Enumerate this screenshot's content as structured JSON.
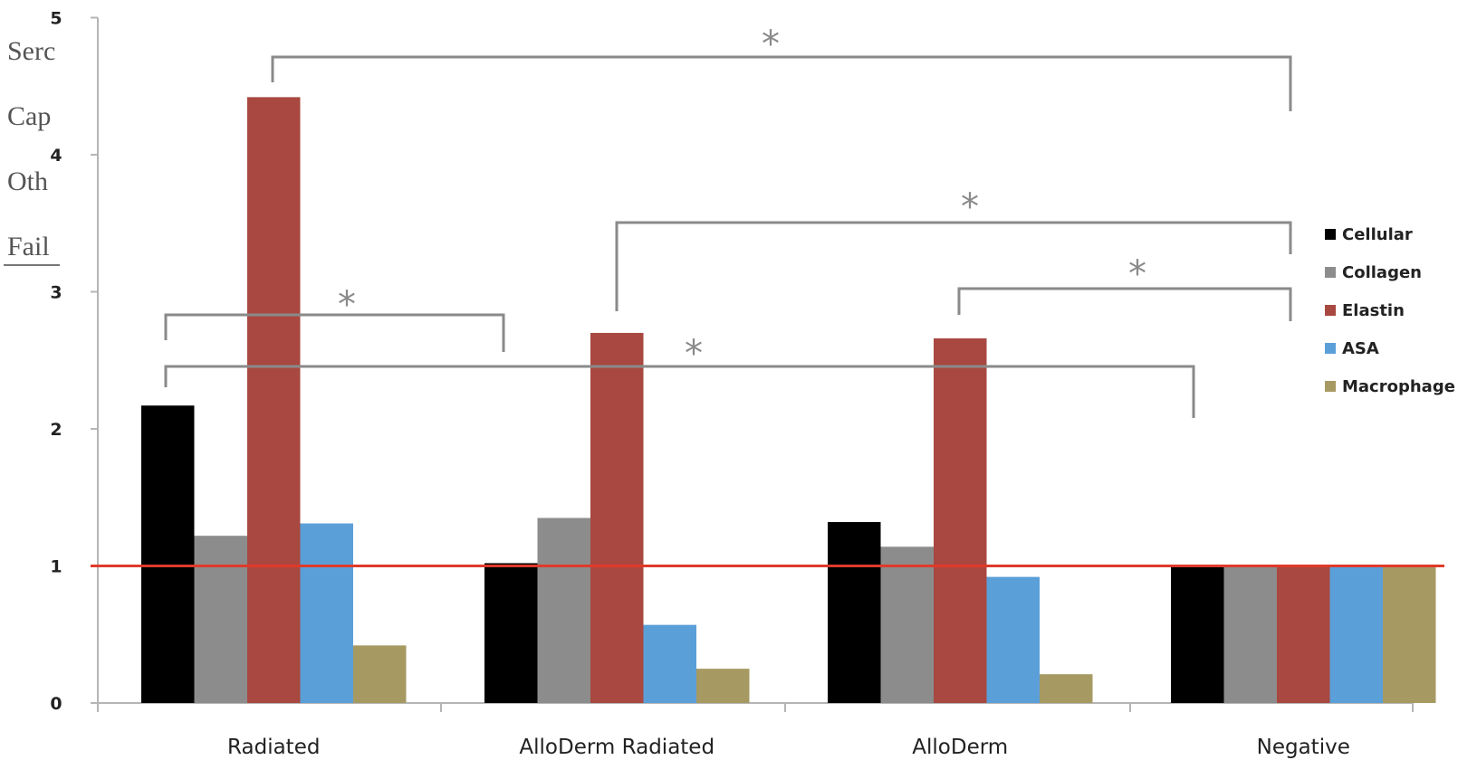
{
  "background_text": {
    "lines": [
      "Serc",
      "Cap",
      "Oth",
      "Fail"
    ]
  },
  "chart_data": {
    "type": "bar",
    "categories": [
      "Radiated",
      "AlloDerm Radiated",
      "AlloDerm",
      "Negative"
    ],
    "series": [
      {
        "name": "Cellular",
        "color": "#000000",
        "values": [
          2.17,
          1.02,
          1.32,
          1.0
        ]
      },
      {
        "name": "Collagen",
        "color": "#8c8c8c",
        "values": [
          1.22,
          1.35,
          1.14,
          1.0
        ]
      },
      {
        "name": "Elastin",
        "color": "#a84840",
        "values": [
          4.42,
          2.7,
          2.66,
          1.0
        ]
      },
      {
        "name": "ASA",
        "color": "#5b9fd9",
        "values": [
          1.31,
          0.57,
          0.92,
          1.0
        ]
      },
      {
        "name": "Macrophage",
        "color": "#a69a62",
        "values": [
          0.42,
          0.25,
          0.21,
          1.0
        ]
      }
    ],
    "ylim": [
      0,
      5
    ],
    "yticks": [
      "0",
      "1",
      "2",
      "3",
      "4",
      "5"
    ],
    "reference_line": {
      "y": 1,
      "color": "#e03a2a"
    },
    "legend_position": "right",
    "significance": [
      {
        "label": "*",
        "from_category": 0,
        "from_series": 2,
        "to_category": 3,
        "to_series": 2
      },
      {
        "label": "*",
        "from_category": 1,
        "from_series": 2,
        "to_category": 3,
        "to_series": 2
      },
      {
        "label": "*",
        "from_category": 2,
        "from_series": 2,
        "to_category": 3,
        "to_series": 2
      },
      {
        "label": "*",
        "from_category": 0,
        "from_series": 0,
        "to_category": 1,
        "to_series": 0
      },
      {
        "label": "*",
        "from_category": 0,
        "from_series": 0,
        "to_category": 3,
        "to_series": 0
      }
    ]
  }
}
